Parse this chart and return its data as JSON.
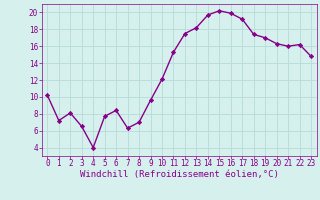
{
  "x": [
    0,
    1,
    2,
    3,
    4,
    5,
    6,
    7,
    8,
    9,
    10,
    11,
    12,
    13,
    14,
    15,
    16,
    17,
    18,
    19,
    20,
    21,
    22,
    23
  ],
  "y": [
    10.2,
    7.2,
    8.1,
    6.5,
    4.0,
    7.7,
    8.4,
    6.3,
    7.0,
    9.6,
    12.1,
    15.3,
    17.5,
    18.2,
    19.7,
    20.2,
    19.9,
    19.2,
    17.4,
    17.0,
    16.3,
    16.0,
    16.2,
    14.8
  ],
  "line_color": "#880088",
  "marker": "D",
  "marker_size": 2.2,
  "linewidth": 1.0,
  "xlabel": "Windchill (Refroidissement éolien,°C)",
  "xlabel_fontsize": 6.5,
  "xlim": [
    -0.5,
    23.5
  ],
  "ylim": [
    3,
    21
  ],
  "yticks": [
    4,
    6,
    8,
    10,
    12,
    14,
    16,
    18,
    20
  ],
  "xticks": [
    0,
    1,
    2,
    3,
    4,
    5,
    6,
    7,
    8,
    9,
    10,
    11,
    12,
    13,
    14,
    15,
    16,
    17,
    18,
    19,
    20,
    21,
    22,
    23
  ],
  "bg_color": "#d6f0ee",
  "grid_color": "#b8dbd8",
  "tick_fontsize": 5.5,
  "tick_label_color": "#880088",
  "xlabel_color": "#880088"
}
